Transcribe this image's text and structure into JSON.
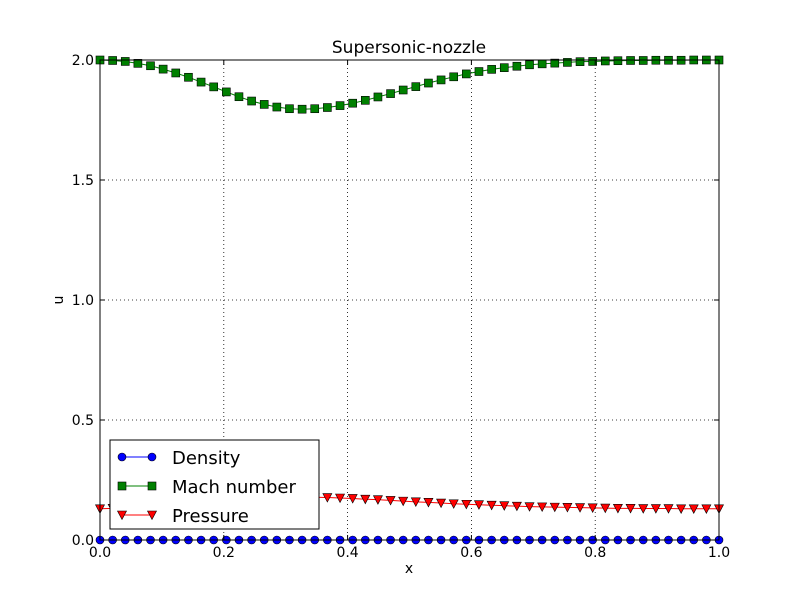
{
  "chart_data": {
    "type": "line",
    "title": "Supersonic-nozzle",
    "xlabel": "x",
    "ylabel": "u",
    "xlim": [
      0.0,
      1.0
    ],
    "ylim": [
      0.0,
      2.0
    ],
    "xticks": [
      "0.0",
      "0.2",
      "0.4",
      "0.6",
      "0.8",
      "1.0"
    ],
    "yticks": [
      "0.0",
      "0.5",
      "1.0",
      "1.5",
      "2.0"
    ],
    "grid": true,
    "legend_position": "lower-left",
    "x": [
      0.0,
      0.0204,
      0.0408,
      0.0612,
      0.0816,
      0.102,
      0.1224,
      0.1429,
      0.1633,
      0.1837,
      0.2041,
      0.2245,
      0.2449,
      0.2653,
      0.2857,
      0.3061,
      0.3265,
      0.3469,
      0.3673,
      0.3878,
      0.4082,
      0.4286,
      0.449,
      0.4694,
      0.4898,
      0.5102,
      0.5306,
      0.551,
      0.5714,
      0.5918,
      0.6122,
      0.6327,
      0.6531,
      0.6735,
      0.6939,
      0.7143,
      0.7347,
      0.7551,
      0.7755,
      0.7959,
      0.8163,
      0.8367,
      0.8571,
      0.8776,
      0.898,
      0.9184,
      0.9388,
      0.9592,
      0.9796,
      1.0
    ],
    "series": [
      {
        "name": "Density",
        "color": "#0000ff",
        "marker": "circle",
        "values": [
          0.0,
          0.0,
          0.0,
          0.0,
          0.0,
          0.0,
          0.0,
          0.0,
          0.0,
          0.0,
          0.0,
          0.0,
          0.0,
          0.0,
          0.0,
          0.0,
          0.0,
          0.0,
          0.0,
          0.0,
          0.0,
          0.0,
          0.0,
          0.0,
          0.0,
          0.0,
          0.0,
          0.0,
          0.0,
          0.0,
          0.0,
          0.0,
          0.0,
          0.0,
          0.0,
          0.0,
          0.0,
          0.0,
          0.0,
          0.0,
          0.0,
          0.0,
          0.0,
          0.0,
          0.0,
          0.0,
          0.0,
          0.0,
          0.0,
          0.0
        ]
      },
      {
        "name": "Mach number",
        "color": "#008000",
        "marker": "square",
        "values": [
          2.0,
          1.998,
          1.994,
          1.986,
          1.976,
          1.962,
          1.946,
          1.928,
          1.908,
          1.888,
          1.867,
          1.847,
          1.829,
          1.815,
          1.804,
          1.797,
          1.795,
          1.797,
          1.802,
          1.81,
          1.82,
          1.832,
          1.846,
          1.86,
          1.875,
          1.889,
          1.904,
          1.917,
          1.93,
          1.942,
          1.952,
          1.961,
          1.968,
          1.974,
          1.98,
          1.984,
          1.987,
          1.99,
          1.993,
          1.994,
          1.996,
          1.997,
          1.998,
          1.998,
          1.999,
          1.999,
          1.999,
          2.0,
          2.0,
          2.0
        ]
      },
      {
        "name": "Pressure",
        "color": "#ff0000",
        "marker": "triangle-down",
        "values": [
          0.13,
          0.132,
          0.135,
          0.139,
          0.144,
          0.149,
          0.155,
          0.16,
          0.165,
          0.169,
          0.173,
          0.176,
          0.178,
          0.179,
          0.18,
          0.18,
          0.179,
          0.178,
          0.177,
          0.175,
          0.173,
          0.17,
          0.168,
          0.165,
          0.162,
          0.159,
          0.157,
          0.154,
          0.151,
          0.149,
          0.147,
          0.145,
          0.143,
          0.141,
          0.139,
          0.138,
          0.137,
          0.136,
          0.135,
          0.134,
          0.133,
          0.132,
          0.132,
          0.131,
          0.131,
          0.131,
          0.13,
          0.13,
          0.13,
          0.13
        ]
      }
    ]
  }
}
